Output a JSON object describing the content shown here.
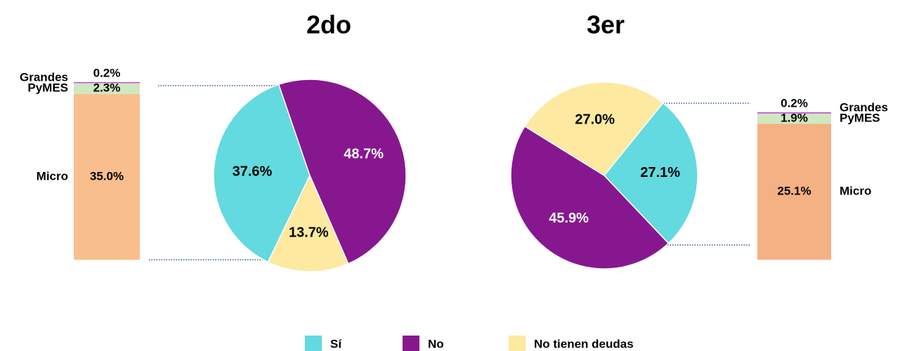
{
  "chart_data": [
    {
      "type": "stacked-bar",
      "categories": [
        "Grandes",
        "PyMES",
        "Micro"
      ],
      "values": [
        0.2,
        2.3,
        35.0
      ],
      "value_labels": [
        "0.2%",
        "2.3%",
        "35.0%"
      ],
      "colors": [
        "#c43fd8",
        "#cfe8c0",
        "#f9be8d"
      ]
    },
    {
      "type": "pie",
      "title": "2do",
      "categories": [
        "Sí",
        "No",
        "No tienen deudas"
      ],
      "values": [
        37.6,
        48.7,
        13.7
      ],
      "value_labels": [
        "37.6%",
        "48.7%",
        "13.7%"
      ],
      "colors": [
        "#63d9e0",
        "#87178f",
        "#fde9a0"
      ]
    },
    {
      "type": "pie",
      "title": "3er",
      "categories": [
        "Sí",
        "No",
        "No tienen deudas"
      ],
      "values": [
        27.1,
        45.9,
        27.0
      ],
      "value_labels": [
        "27.1%",
        "45.9%",
        "27.0%"
      ],
      "colors": [
        "#63d9e0",
        "#87178f",
        "#fde9a0"
      ]
    },
    {
      "type": "stacked-bar",
      "categories": [
        "Grandes",
        "PyMES",
        "Micro"
      ],
      "values": [
        0.2,
        1.9,
        25.1
      ],
      "value_labels": [
        "0.2%",
        "1.9%",
        "25.1%"
      ],
      "colors": [
        "#c43fd8",
        "#cfe8c0",
        "#f4b183"
      ]
    }
  ]
}
